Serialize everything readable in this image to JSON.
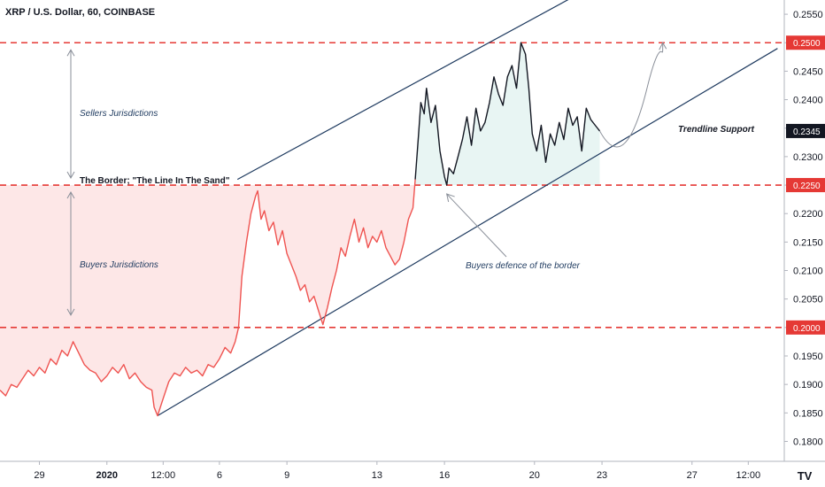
{
  "chart_data": {
    "type": "line",
    "title": "XRP / U.S. Dollar, 60, COINBASE",
    "ylim": [
      0.1765,
      0.2575
    ],
    "y_ticks": [
      0.255,
      0.25,
      0.245,
      0.24,
      0.235,
      0.23,
      0.225,
      0.22,
      0.215,
      0.21,
      0.205,
      0.2,
      0.195,
      0.19,
      0.185,
      0.18
    ],
    "y_tick_labels": [
      "0.2550",
      "0.2500",
      "0.2450",
      "0.2400",
      "0.2350",
      "0.2300",
      "0.2250",
      "0.2200",
      "0.2150",
      "0.2100",
      "0.2050",
      "0.2000",
      "0.1950",
      "0.1900",
      "0.1850",
      "0.1800"
    ],
    "x_ticks": [
      {
        "label": "29",
        "t": 1.0
      },
      {
        "label": "2020",
        "t": 4.0
      },
      {
        "label": "12:00",
        "t": 6.5
      },
      {
        "label": "6",
        "t": 9.0
      },
      {
        "label": "9",
        "t": 12.0
      },
      {
        "label": "13",
        "t": 16.0
      },
      {
        "label": "16",
        "t": 19.0
      },
      {
        "label": "20",
        "t": 23.0
      },
      {
        "label": "23",
        "t": 26.0
      },
      {
        "label": "27",
        "t": 30.0
      },
      {
        "label": "12:00",
        "t": 32.5
      }
    ],
    "x_range": [
      -0.75,
      34.1
    ],
    "series": [
      {
        "color": "#ef5350",
        "points": [
          [
            -0.75,
            0.189
          ],
          [
            -0.5,
            0.188
          ],
          [
            -0.25,
            0.19
          ],
          [
            0.0,
            0.1895
          ],
          [
            0.25,
            0.191
          ],
          [
            0.5,
            0.1925
          ],
          [
            0.75,
            0.1915
          ],
          [
            1.0,
            0.193
          ],
          [
            1.25,
            0.192
          ],
          [
            1.5,
            0.1945
          ],
          [
            1.75,
            0.1935
          ],
          [
            2.0,
            0.196
          ],
          [
            2.25,
            0.195
          ],
          [
            2.5,
            0.1975
          ],
          [
            2.75,
            0.1955
          ],
          [
            3.0,
            0.1935
          ],
          [
            3.25,
            0.1925
          ],
          [
            3.5,
            0.192
          ],
          [
            3.75,
            0.1905
          ],
          [
            4.0,
            0.1915
          ],
          [
            4.25,
            0.193
          ],
          [
            4.5,
            0.192
          ],
          [
            4.75,
            0.1935
          ],
          [
            5.0,
            0.191
          ],
          [
            5.25,
            0.192
          ],
          [
            5.5,
            0.1905
          ],
          [
            5.75,
            0.1895
          ],
          [
            6.0,
            0.189
          ],
          [
            6.1,
            0.186
          ],
          [
            6.25,
            0.1845
          ],
          [
            6.5,
            0.1875
          ],
          [
            6.75,
            0.1905
          ],
          [
            7.0,
            0.192
          ],
          [
            7.25,
            0.1915
          ],
          [
            7.5,
            0.193
          ],
          [
            7.75,
            0.192
          ],
          [
            8.0,
            0.1925
          ],
          [
            8.25,
            0.1915
          ],
          [
            8.5,
            0.1935
          ],
          [
            8.75,
            0.193
          ],
          [
            9.0,
            0.1945
          ],
          [
            9.25,
            0.1965
          ],
          [
            9.5,
            0.1955
          ],
          [
            9.7,
            0.1975
          ],
          [
            9.85,
            0.2
          ],
          [
            10.0,
            0.209
          ],
          [
            10.2,
            0.215
          ],
          [
            10.4,
            0.22
          ],
          [
            10.6,
            0.223
          ],
          [
            10.7,
            0.224
          ],
          [
            10.85,
            0.219
          ],
          [
            11.0,
            0.2205
          ],
          [
            11.2,
            0.217
          ],
          [
            11.4,
            0.2185
          ],
          [
            11.6,
            0.2145
          ],
          [
            11.8,
            0.217
          ],
          [
            12.0,
            0.213
          ],
          [
            12.2,
            0.211
          ],
          [
            12.4,
            0.209
          ],
          [
            12.6,
            0.2065
          ],
          [
            12.8,
            0.2075
          ],
          [
            13.0,
            0.2045
          ],
          [
            13.2,
            0.2055
          ],
          [
            13.4,
            0.203
          ],
          [
            13.6,
            0.2005
          ],
          [
            13.8,
            0.2035
          ],
          [
            14.0,
            0.207
          ],
          [
            14.2,
            0.21
          ],
          [
            14.4,
            0.214
          ],
          [
            14.6,
            0.2125
          ],
          [
            14.8,
            0.216
          ],
          [
            15.0,
            0.219
          ],
          [
            15.2,
            0.215
          ],
          [
            15.4,
            0.2175
          ],
          [
            15.6,
            0.214
          ],
          [
            15.8,
            0.216
          ],
          [
            16.0,
            0.215
          ],
          [
            16.2,
            0.217
          ],
          [
            16.4,
            0.214
          ],
          [
            16.6,
            0.2125
          ],
          [
            16.8,
            0.211
          ],
          [
            17.0,
            0.212
          ],
          [
            17.2,
            0.215
          ],
          [
            17.4,
            0.219
          ],
          [
            17.6,
            0.221
          ],
          [
            17.7,
            0.226
          ]
        ]
      },
      {
        "color": "#131722",
        "points": [
          [
            17.7,
            0.226
          ],
          [
            17.85,
            0.234
          ],
          [
            17.95,
            0.2395
          ],
          [
            18.1,
            0.2375
          ],
          [
            18.2,
            0.242
          ],
          [
            18.4,
            0.236
          ],
          [
            18.6,
            0.239
          ],
          [
            18.8,
            0.231
          ],
          [
            19.0,
            0.2265
          ],
          [
            19.1,
            0.225
          ],
          [
            19.2,
            0.228
          ],
          [
            19.4,
            0.227
          ],
          [
            19.6,
            0.23
          ],
          [
            19.8,
            0.233
          ],
          [
            20.0,
            0.237
          ],
          [
            20.2,
            0.232
          ],
          [
            20.4,
            0.2385
          ],
          [
            20.6,
            0.2345
          ],
          [
            20.8,
            0.236
          ],
          [
            21.0,
            0.2395
          ],
          [
            21.2,
            0.244
          ],
          [
            21.4,
            0.241
          ],
          [
            21.6,
            0.239
          ],
          [
            21.8,
            0.244
          ],
          [
            22.0,
            0.246
          ],
          [
            22.2,
            0.242
          ],
          [
            22.4,
            0.25
          ],
          [
            22.6,
            0.248
          ],
          [
            22.75,
            0.242
          ],
          [
            22.9,
            0.234
          ],
          [
            23.1,
            0.231
          ],
          [
            23.3,
            0.2355
          ],
          [
            23.5,
            0.229
          ],
          [
            23.7,
            0.234
          ],
          [
            23.9,
            0.232
          ],
          [
            24.1,
            0.236
          ],
          [
            24.3,
            0.233
          ],
          [
            24.5,
            0.2385
          ],
          [
            24.7,
            0.2355
          ],
          [
            24.9,
            0.237
          ],
          [
            25.1,
            0.231
          ],
          [
            25.3,
            0.2385
          ],
          [
            25.5,
            0.2365
          ],
          [
            25.7,
            0.2355
          ],
          [
            25.9,
            0.2345
          ]
        ]
      }
    ],
    "projection": [
      [
        25.9,
        0.2345
      ],
      [
        26.6,
        0.231
      ],
      [
        27.3,
        0.233
      ],
      [
        28.0,
        0.242
      ],
      [
        28.7,
        0.25
      ]
    ],
    "channel_upper": [
      [
        9.8,
        0.226
      ],
      [
        24.7,
        0.258
      ]
    ],
    "channel_lower": [
      [
        6.25,
        0.1845
      ],
      [
        33.8,
        0.249
      ]
    ],
    "horizontal_levels": [
      {
        "value": 0.25,
        "label": "0.2500"
      },
      {
        "value": 0.225,
        "label": "0.2250"
      },
      {
        "value": 0.2,
        "label": "0.2000"
      }
    ],
    "current_price": {
      "value": 0.2345,
      "label": "0.2345"
    },
    "annotations": {
      "sellers": "Sellers Jurisdictions",
      "border": "The Border; \"The Line In The Sand\"",
      "buyers": "Buyers Jurisdictions",
      "defence": "Buyers defence of the border",
      "trendline": "Trendline Support"
    },
    "colors": {
      "up_fill": "#e8f5f3",
      "down_fill": "#fde7e7",
      "level": "#e53935",
      "channel": "#1e3a5f"
    },
    "logo": "TV"
  }
}
